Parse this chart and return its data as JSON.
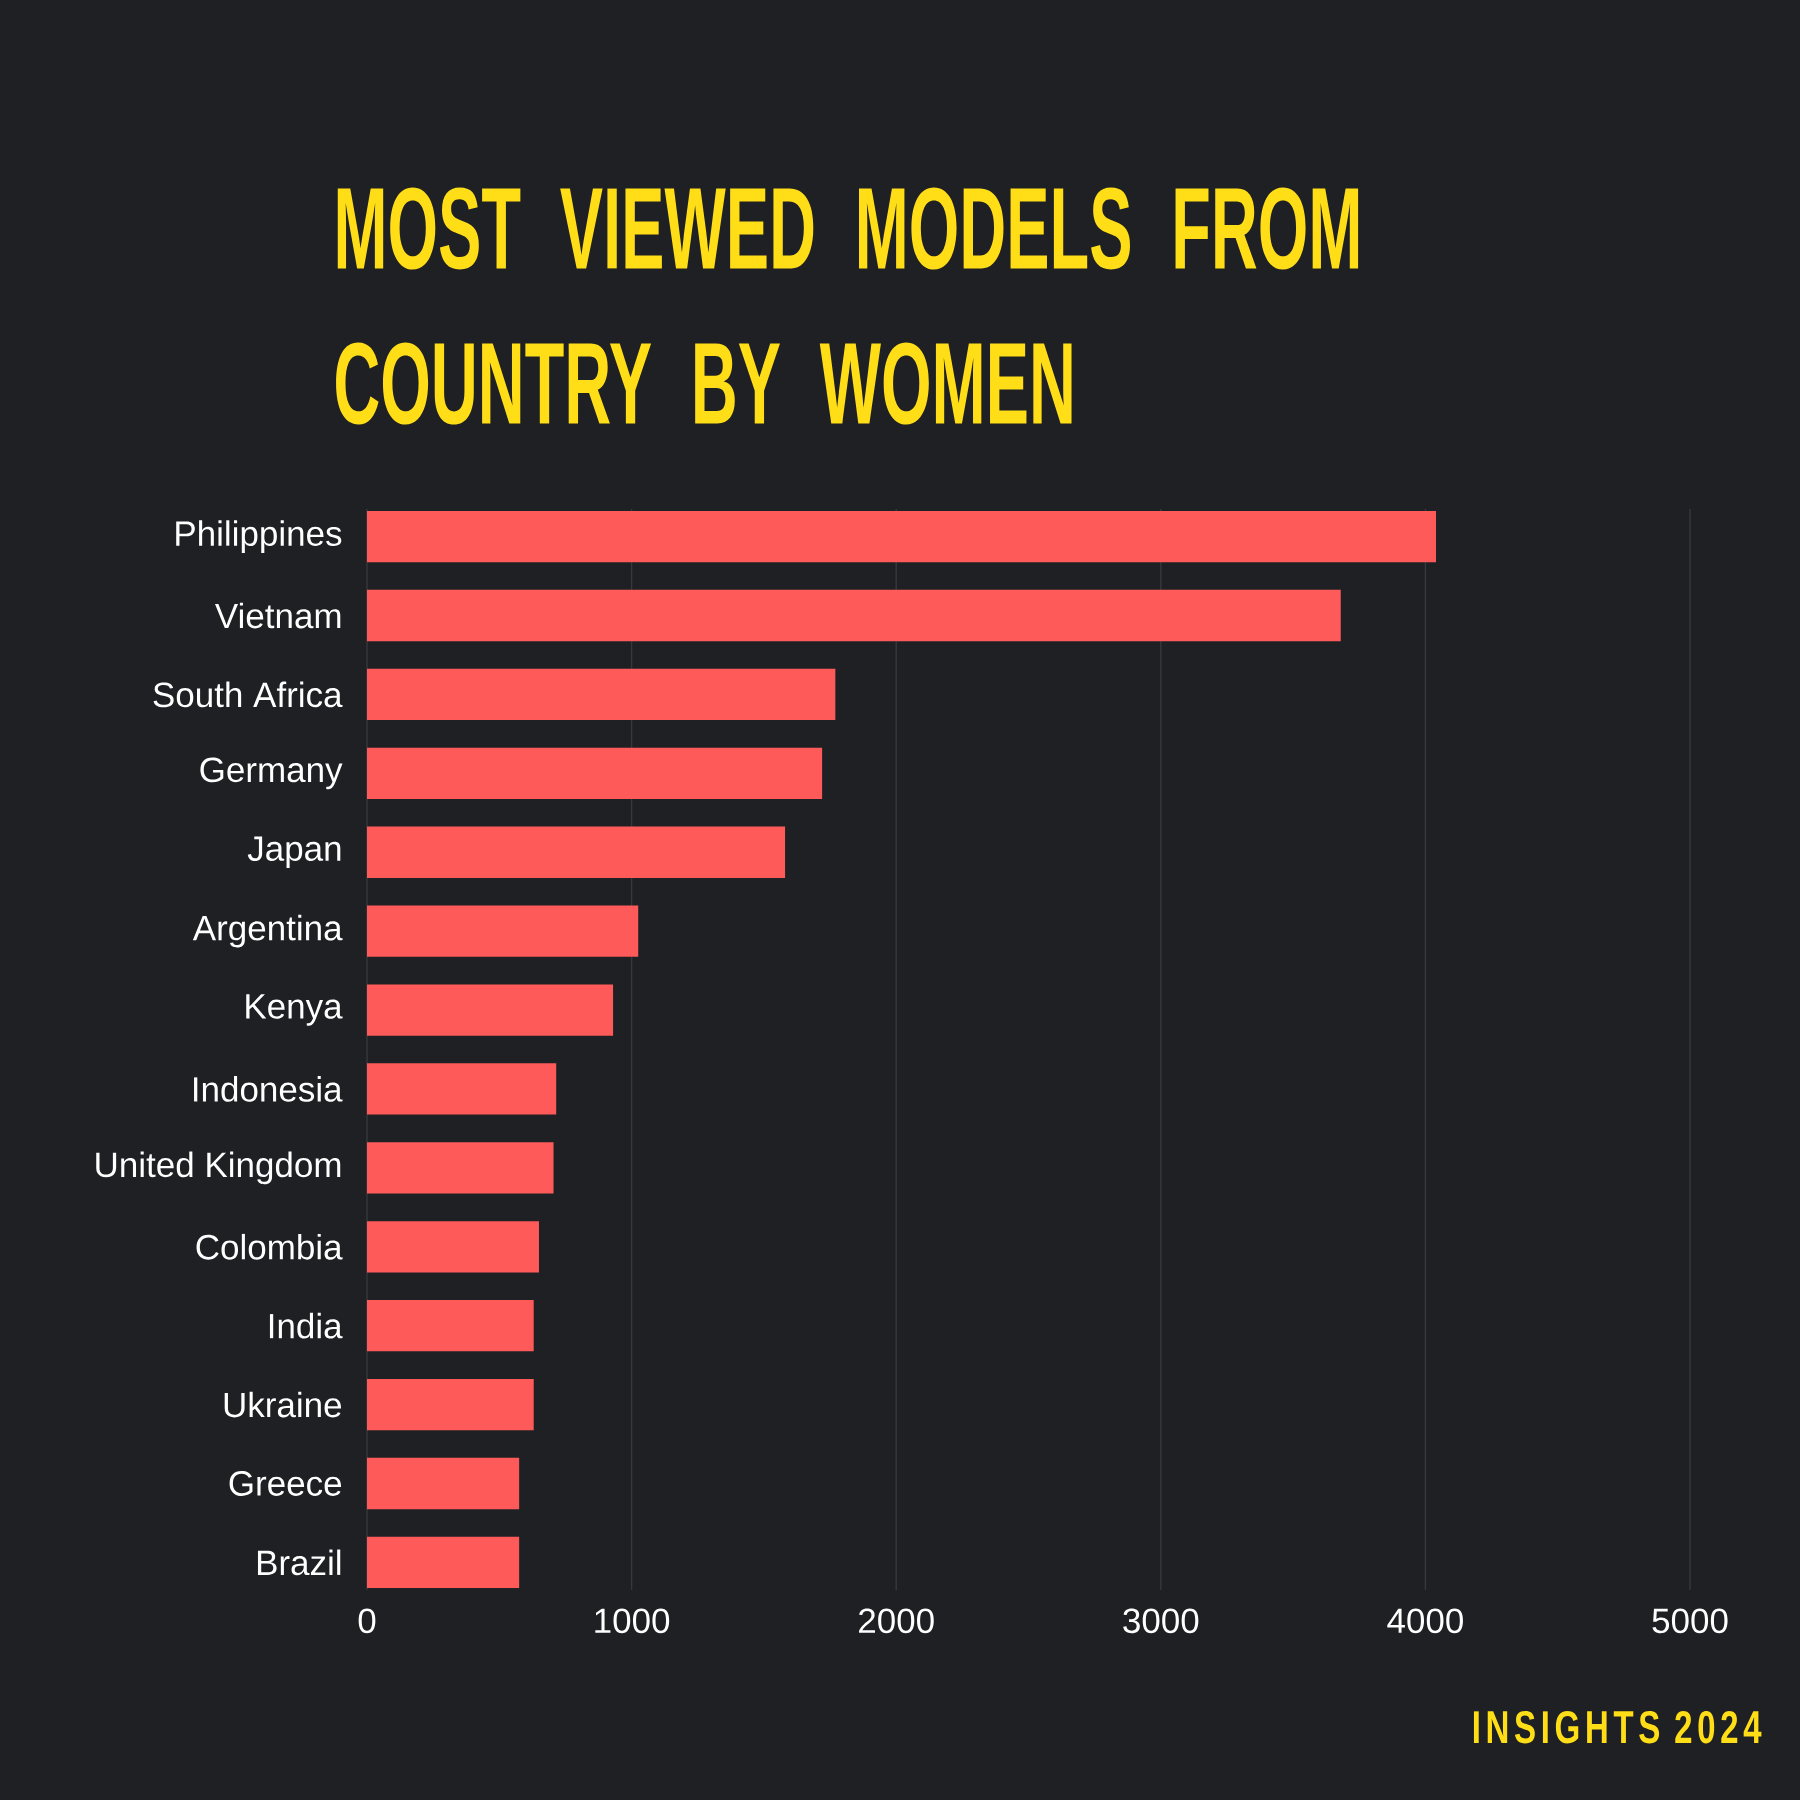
{
  "chart_data": {
    "type": "bar",
    "orientation": "horizontal",
    "title": "MOST VIEWED MODELS FROM COUNTRY BY WOMEN",
    "categories": [
      "Philippines",
      "Vietnam",
      "South Africa",
      "Germany",
      "Japan",
      "Argentina",
      "Kenya",
      "Indonesia",
      "United Kingdom",
      "Colombia",
      "India",
      "Ukraine",
      "Greece",
      "Brazil"
    ],
    "values": [
      4040,
      3680,
      1770,
      1720,
      1580,
      1025,
      930,
      715,
      705,
      650,
      630,
      630,
      575,
      575
    ],
    "color": "#ff5a5a",
    "xlim": [
      0,
      5000
    ],
    "xticks": [
      0,
      1000,
      2000,
      3000,
      4000,
      5000
    ],
    "grid": "x",
    "annotations": [
      "INSIGHTS 2024"
    ]
  }
}
